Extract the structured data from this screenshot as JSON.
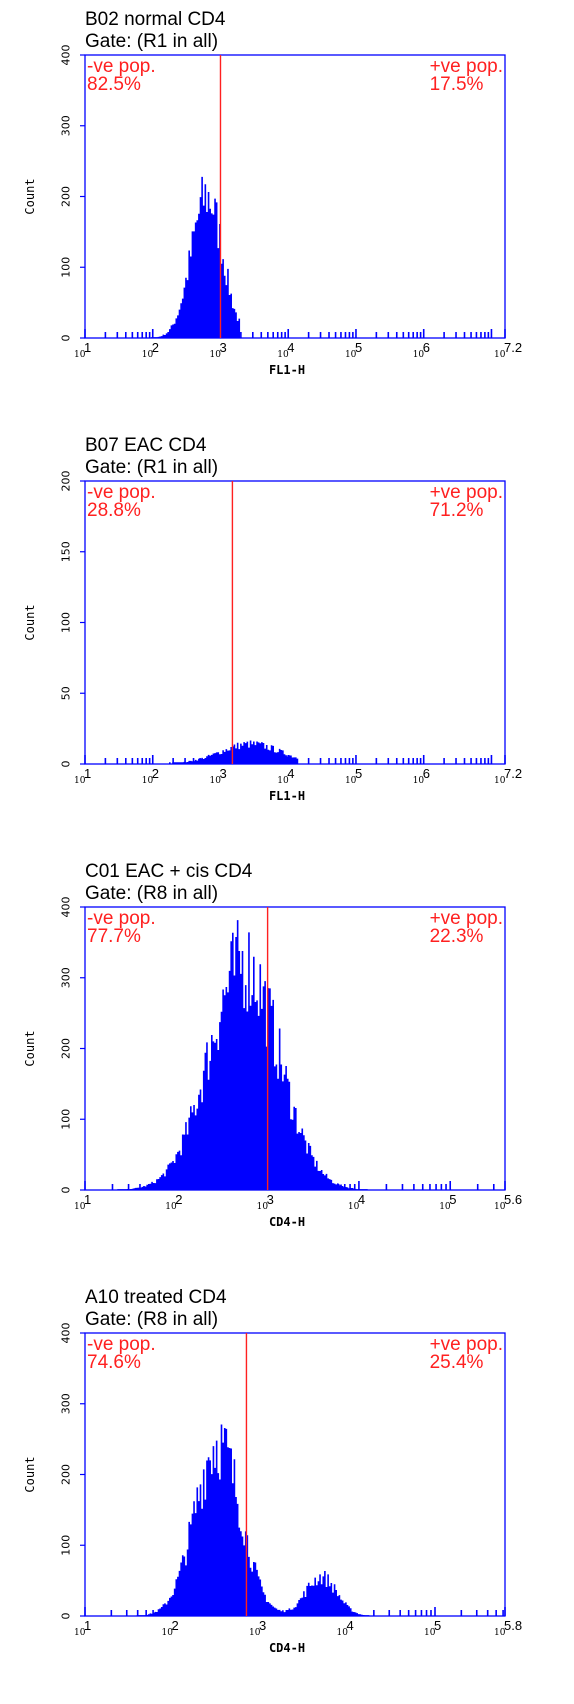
{
  "chart_data": [
    {
      "type": "area",
      "title": "B02 normal CD4",
      "subtitle": "Gate: (R1 in all)",
      "xlabel": "FL1-H",
      "ylabel": "Count",
      "x_scale": "log",
      "xlim_decades": [
        1,
        7.2
      ],
      "x_tick_labels": [
        "10^1",
        "10^2",
        "10^3",
        "10^4",
        "10^5",
        "10^6",
        "10^7.2"
      ],
      "ylim": [
        0,
        400
      ],
      "y_ticks": [
        0,
        100,
        200,
        300,
        400
      ],
      "gate": {
        "x": 1000,
        "left_label": "-ve pop.",
        "left_value": "82.5%",
        "right_label": "+ve pop.",
        "right_value": "17.5%"
      },
      "histogram_peaks": [
        {
          "mode": 630,
          "height": 200,
          "sigma_decades": 0.23
        }
      ],
      "histogram_max_decade": 3.3
    },
    {
      "type": "area",
      "title": "B07 EAC  CD4",
      "subtitle": "Gate: (R1 in all)",
      "xlabel": "FL1-H",
      "ylabel": "Count",
      "x_scale": "log",
      "xlim_decades": [
        1,
        7.2
      ],
      "x_tick_labels": [
        "10^1",
        "10^2",
        "10^3",
        "10^4",
        "10^5",
        "10^6",
        "10^7.2"
      ],
      "ylim": [
        0,
        200
      ],
      "y_ticks": [
        0,
        50,
        100,
        150,
        200
      ],
      "gate": {
        "x": 1500,
        "left_label": "-ve pop.",
        "left_value": "28.8%",
        "right_label": "+ve pop.",
        "right_value": "71.2%"
      },
      "histogram_peaks": [
        {
          "mode": 2800,
          "height": 14,
          "sigma_decades": 0.45
        }
      ],
      "histogram_max_decade": 4.15
    },
    {
      "type": "area",
      "title": "C01 EAC + cis CD4",
      "subtitle": "Gate: (R8 in all)",
      "xlabel": "CD4-H",
      "ylabel": "Count",
      "x_scale": "log",
      "xlim_decades": [
        1,
        5.6
      ],
      "x_tick_labels": [
        "10^1",
        "10^2",
        "10^3",
        "10^4",
        "10^5",
        "10^5.6"
      ],
      "ylim": [
        0,
        400
      ],
      "y_ticks": [
        0,
        100,
        200,
        300,
        400
      ],
      "gate": {
        "x": 1000,
        "left_label": "-ve pop.",
        "left_value": "77.7%",
        "right_label": "+ve pop.",
        "right_value": "22.3%"
      },
      "histogram_peaks": [
        {
          "mode": 550,
          "height": 320,
          "sigma_decades": 0.38
        }
      ],
      "histogram_max_decade": 4.1
    },
    {
      "type": "area",
      "title": "A10 treated CD4",
      "subtitle": "Gate: (R8 in all)",
      "xlabel": "CD4-H",
      "ylabel": "Count",
      "x_scale": "log",
      "xlim_decades": [
        1,
        5.8
      ],
      "x_tick_labels": [
        "10^1",
        "10^2",
        "10^3",
        "10^4",
        "10^5",
        "10^5.8"
      ],
      "ylim": [
        0,
        400
      ],
      "y_ticks": [
        0,
        100,
        200,
        300,
        400
      ],
      "gate": {
        "x": 700,
        "left_label": "-ve pop.",
        "left_value": "74.6%",
        "right_label": "+ve pop.",
        "right_value": "25.4%"
      },
      "histogram_peaks": [
        {
          "mode": 330,
          "height": 245,
          "sigma_decades": 0.26
        },
        {
          "mode": 5000,
          "height": 55,
          "sigma_decades": 0.18
        }
      ],
      "histogram_max_decade": 4.25
    }
  ],
  "colors": {
    "axis": "#0000ff",
    "histogram": "#0000ff",
    "gate": "#ff2020",
    "text": "#000000"
  }
}
